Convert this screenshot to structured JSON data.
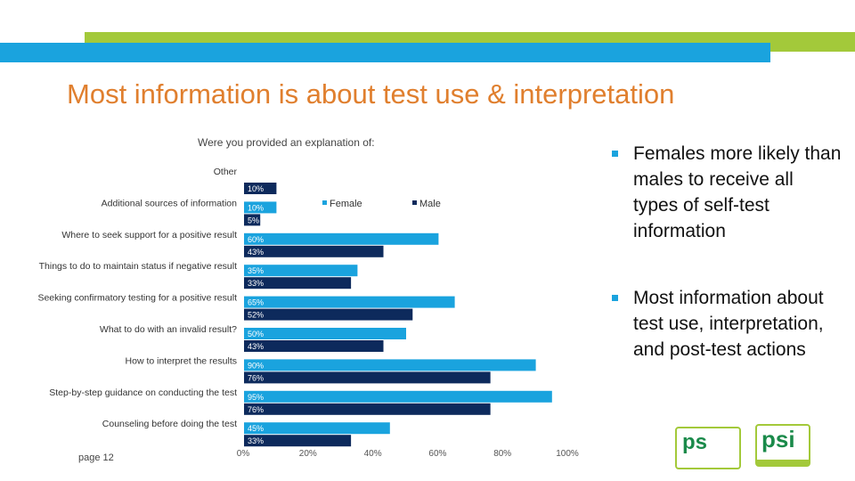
{
  "slide": {
    "title": "Most information is about test use & interpretation",
    "page_label": "page 12"
  },
  "bullets": [
    "Females more likely than males to receive all types of self-test information",
    "Most information about test use, interpretation, and post-test actions"
  ],
  "logos": [
    {
      "text": "ps",
      "name": "ps-logo"
    },
    {
      "text": "psi",
      "name": "psi-logo"
    }
  ],
  "colors": {
    "female": "#1aa3de",
    "male": "#0d2a5c",
    "title": "#e07f2e",
    "band_green": "#a3c93a",
    "band_blue": "#1aa3de"
  },
  "chart_data": {
    "type": "bar",
    "orientation": "horizontal",
    "title": "Were you provided an explanation of:",
    "categories": [
      "Other",
      "Additional sources of information",
      "Where to seek support for a positive result",
      "Things to do to maintain status if negative result",
      "Seeking confirmatory testing for a positive result",
      "What to do with an invalid result?",
      "How to interpret the results",
      "Step-by-step guidance on conducting the test",
      "Counseling before doing the test"
    ],
    "series": [
      {
        "name": "Female",
        "values": [
          null,
          10,
          60,
          35,
          65,
          50,
          90,
          95,
          45
        ],
        "labels": [
          "",
          "10%",
          "60%",
          "35%",
          "65%",
          "50%",
          "90%",
          "95%",
          "45%"
        ]
      },
      {
        "name": "Male",
        "values": [
          10,
          5,
          43,
          33,
          52,
          43,
          76,
          76,
          33
        ],
        "labels": [
          "10%",
          "5%",
          "43%",
          "33%",
          "52%",
          "43%",
          "76%",
          "76%",
          "33%"
        ]
      }
    ],
    "x_ticks": [
      "0%",
      "20%",
      "40%",
      "60%",
      "80%",
      "100%"
    ],
    "xlim": [
      0,
      100
    ],
    "legend_position": "top-right",
    "grid": false
  }
}
